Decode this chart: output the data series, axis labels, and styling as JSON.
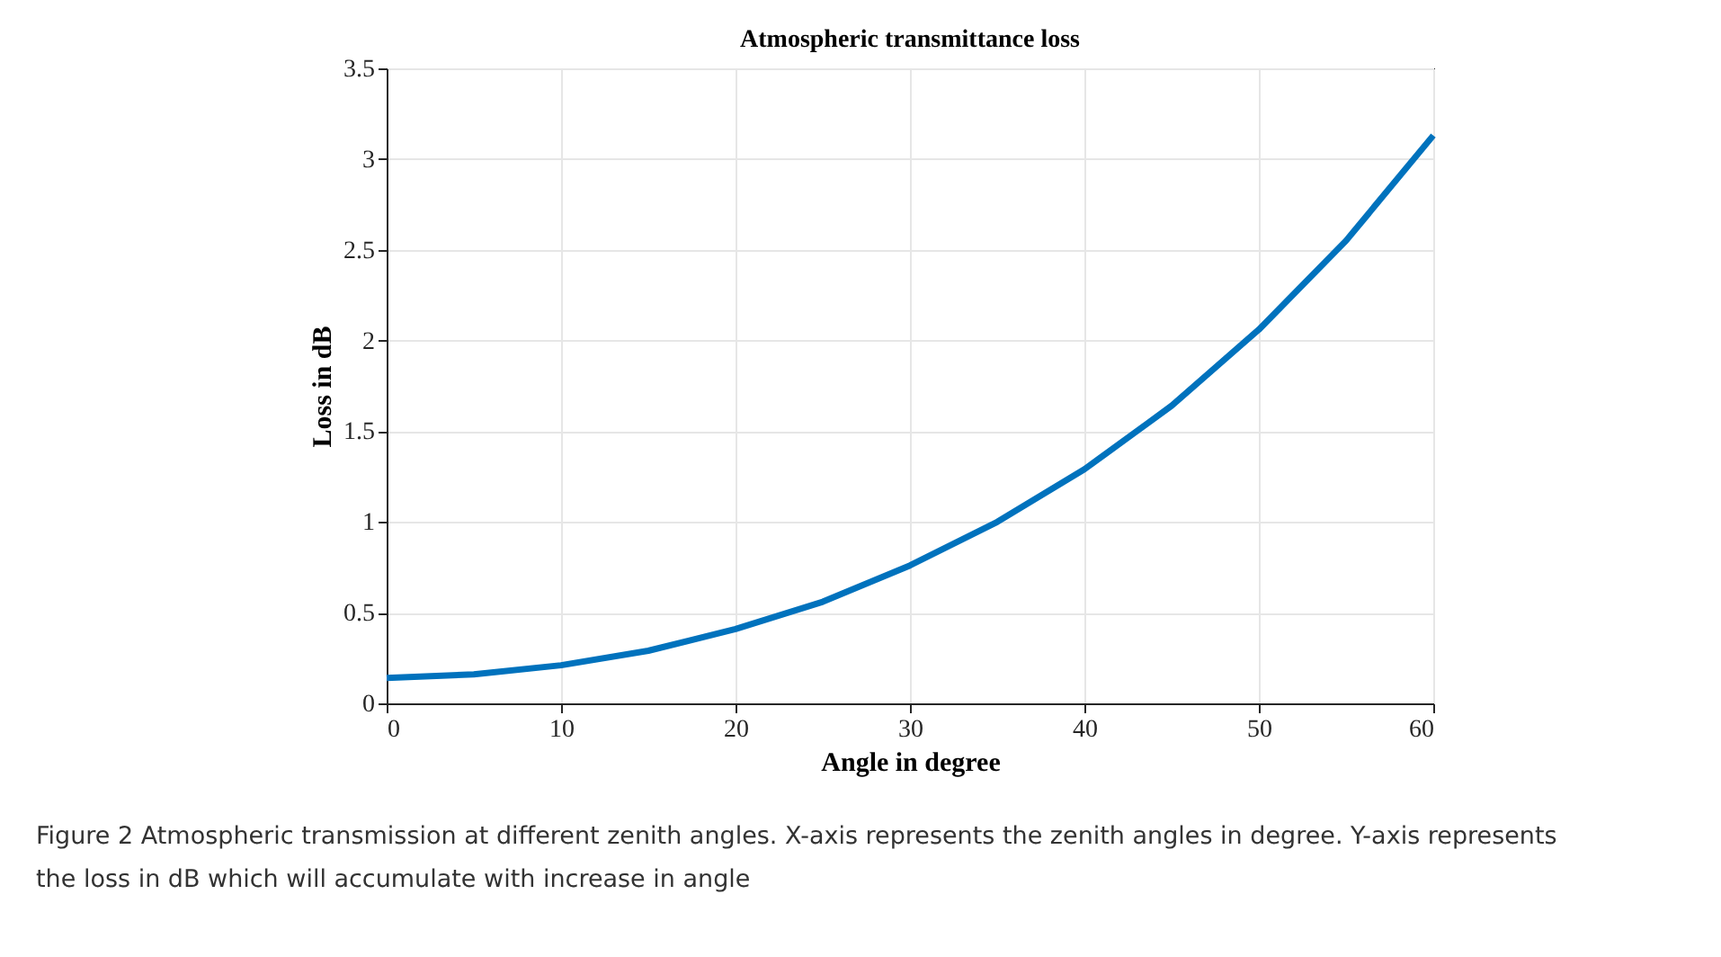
{
  "chart_data": {
    "type": "line",
    "title": "Atmospheric transmittance loss",
    "xlabel": "Angle in degree",
    "ylabel": "Loss in dB",
    "x": [
      0,
      5,
      10,
      15,
      20,
      25,
      30,
      35,
      40,
      45,
      50,
      55,
      60
    ],
    "series": [
      {
        "color": "#0072bd",
        "values": [
          0.14,
          0.16,
          0.21,
          0.29,
          0.41,
          0.56,
          0.76,
          1.0,
          1.29,
          1.64,
          2.06,
          2.55,
          3.13
        ]
      }
    ],
    "xlim": [
      0,
      60
    ],
    "xticks": [
      0,
      10,
      20,
      30,
      40,
      50,
      60
    ],
    "ylim": [
      0,
      3.5
    ],
    "yticks": [
      0,
      0.5,
      1,
      1.5,
      2,
      2.5,
      3,
      3.5
    ],
    "grid": true,
    "marker": "none",
    "line_style": "solid",
    "annotations": [
      "Figure 2  Atmospheric transmission at different zenith angles. X-axis represents the zenith angles in degree. Y-axis represents the loss in dB which will accumulate with increase in angle"
    ]
  }
}
